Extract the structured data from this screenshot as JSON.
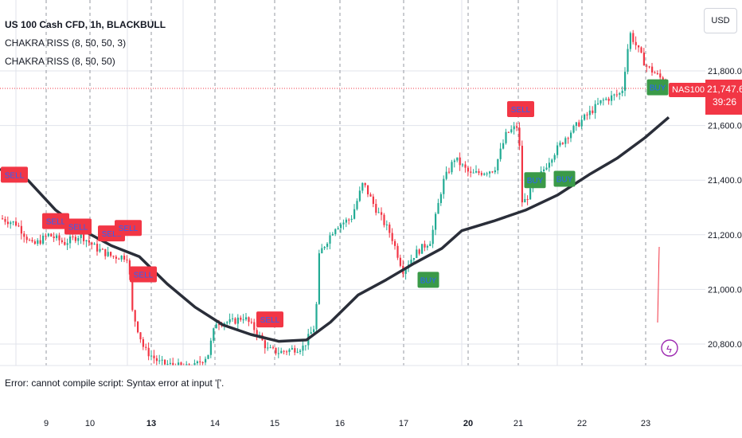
{
  "header": {
    "title": "US 100 Cash CFD, 1h, BLACKBULL",
    "indicators": [
      "CHAKRA RISS (8, 50, 50, 3)",
      "CHAKRA RISS (8, 50, 50)"
    ],
    "currency": "USD"
  },
  "status": {
    "error": "Error: cannot compile script: Syntax error at input '['."
  },
  "price_tag": {
    "symbol": "NAS100",
    "price": "21,747.60",
    "countdown": "39:26"
  },
  "colors": {
    "up": "#22ab94",
    "down": "#f23645",
    "ma": "#2a2e39",
    "sell_label": "#f23645",
    "buy_label": "#3a9a48",
    "alert": "#9c27b0",
    "grid": "#e0e3eb"
  },
  "chart_data": {
    "type": "line",
    "symbol": "US 100 Cash CFD",
    "interval": "1h",
    "ylim": [
      20700,
      21980
    ],
    "y_ticks": [
      "21,800.00",
      "21,600.00",
      "21,400.00",
      "21,200.00",
      "21,000.00",
      "20,800.00"
    ],
    "y_tick_values": [
      21800,
      21600,
      21400,
      21200,
      21000,
      20800
    ],
    "x_ticks": [
      "9",
      "10",
      "13",
      "14",
      "15",
      "16",
      "17",
      "20",
      "21",
      "22",
      "23"
    ],
    "x_tick_bold": [
      "13",
      "20"
    ],
    "last_price": 21747.6,
    "moving_average": [
      [
        0,
        21440
      ],
      [
        35,
        21400
      ],
      [
        70,
        21290
      ],
      [
        105,
        21215
      ],
      [
        140,
        21160
      ],
      [
        175,
        21120
      ],
      [
        210,
        21020
      ],
      [
        245,
        20935
      ],
      [
        280,
        20870
      ],
      [
        315,
        20835
      ],
      [
        350,
        20810
      ],
      [
        385,
        20815
      ],
      [
        415,
        20880
      ],
      [
        450,
        20980
      ],
      [
        485,
        21035
      ],
      [
        520,
        21095
      ],
      [
        555,
        21150
      ],
      [
        580,
        21215
      ],
      [
        620,
        21250
      ],
      [
        660,
        21290
      ],
      [
        700,
        21345
      ],
      [
        740,
        21420
      ],
      [
        775,
        21480
      ],
      [
        810,
        21555
      ],
      [
        840,
        21630
      ]
    ],
    "price_path": [
      [
        0,
        21260
      ],
      [
        20,
        21240
      ],
      [
        40,
        21160
      ],
      [
        60,
        21200
      ],
      [
        80,
        21170
      ],
      [
        100,
        21200
      ],
      [
        120,
        21150
      ],
      [
        140,
        21120
      ],
      [
        160,
        21120
      ],
      [
        165,
        20920
      ],
      [
        180,
        20780
      ],
      [
        200,
        20730
      ],
      [
        220,
        20720
      ],
      [
        240,
        20710
      ],
      [
        260,
        20760
      ],
      [
        270,
        20880
      ],
      [
        290,
        20880
      ],
      [
        305,
        20900
      ],
      [
        320,
        20850
      ],
      [
        335,
        20780
      ],
      [
        350,
        20770
      ],
      [
        380,
        20790
      ],
      [
        395,
        20870
      ],
      [
        400,
        21130
      ],
      [
        420,
        21230
      ],
      [
        440,
        21260
      ],
      [
        455,
        21390
      ],
      [
        470,
        21300
      ],
      [
        490,
        21200
      ],
      [
        505,
        21070
      ],
      [
        520,
        21130
      ],
      [
        540,
        21180
      ],
      [
        555,
        21390
      ],
      [
        570,
        21480
      ],
      [
        590,
        21420
      ],
      [
        620,
        21440
      ],
      [
        635,
        21570
      ],
      [
        650,
        21600
      ],
      [
        655,
        21310
      ],
      [
        670,
        21380
      ],
      [
        690,
        21480
      ],
      [
        710,
        21560
      ],
      [
        730,
        21620
      ],
      [
        755,
        21690
      ],
      [
        780,
        21720
      ],
      [
        790,
        21940
      ],
      [
        810,
        21820
      ],
      [
        830,
        21770
      ],
      [
        840,
        21740
      ]
    ],
    "signals": [
      {
        "label": "SELL",
        "type": "sell",
        "x": 18,
        "price": 21420
      },
      {
        "label": "SELL",
        "type": "sell",
        "x": 70,
        "price": 21250
      },
      {
        "label": "SELL",
        "type": "sell",
        "x": 98,
        "price": 21230
      },
      {
        "label": "SELL",
        "type": "sell",
        "x": 140,
        "price": 21205
      },
      {
        "label": "SELL",
        "type": "sell",
        "x": 161,
        "price": 21225
      },
      {
        "label": "SELL",
        "type": "sell",
        "x": 180,
        "price": 21055
      },
      {
        "label": "SELL",
        "type": "sell",
        "x": 339,
        "price": 20890
      },
      {
        "label": "SELL",
        "type": "sell",
        "x": 654,
        "price": 21660
      },
      {
        "label": "BUY",
        "type": "buy",
        "x": 538,
        "price": 21035
      },
      {
        "label": "BUY",
        "type": "buy",
        "x": 672,
        "price": 21400
      },
      {
        "label": "BUY",
        "type": "buy",
        "x": 709,
        "price": 21405
      },
      {
        "label": "BUY",
        "type": "buy",
        "x": 826,
        "price": 21740
      }
    ]
  }
}
